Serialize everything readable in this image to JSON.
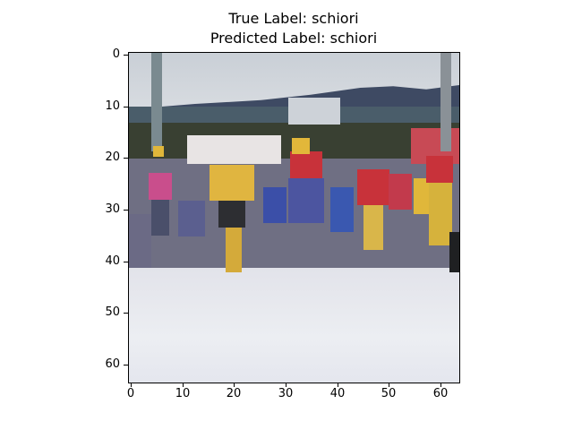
{
  "figure": {
    "title_line_1": "True Label: schiori",
    "title_line_2": "Predicted Label: schiori"
  },
  "axes": {
    "y_ticks": [
      "0",
      "10",
      "20",
      "30",
      "40",
      "50",
      "60"
    ],
    "x_ticks": [
      "0",
      "10",
      "20",
      "30",
      "40",
      "50",
      "60"
    ]
  },
  "image": {
    "description_colors": {
      "sky": "#d2d6dc",
      "mountain": "#3e4a63",
      "forest": "#394032",
      "snow": "#eceef2",
      "yellow_bib": "#e2b73a",
      "pink_suit": "#c74b8c",
      "red_suit": "#c8323a",
      "blue_suit": "#3b4fa8"
    }
  }
}
